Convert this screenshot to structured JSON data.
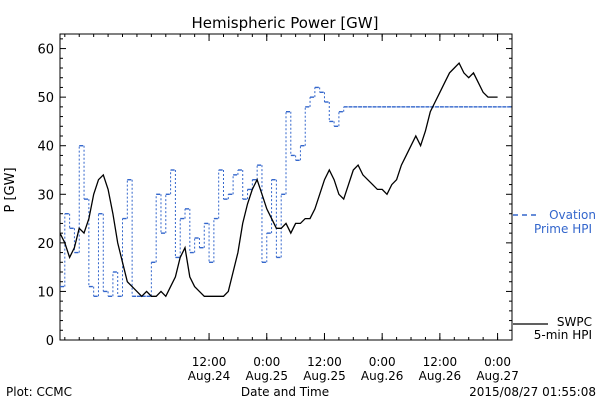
{
  "chart_data": {
    "type": "line",
    "title": "Hemispheric Power [GW]",
    "xlabel": "Date and Time",
    "ylabel": "P [GW]",
    "ylim": [
      0,
      63
    ],
    "xlim": [
      "2015-08-23 05:00",
      "2015-08-27 03:00"
    ],
    "y_ticks": [
      "0",
      "10",
      "20",
      "30",
      "40",
      "50",
      "60"
    ],
    "x_ticks": [
      {
        "time": "2015-08-24 12:00",
        "label1": "12:00",
        "label2": "Aug.24"
      },
      {
        "time": "2015-08-25 00:00",
        "label1": "0:00",
        "label2": "Aug.25"
      },
      {
        "time": "2015-08-25 12:00",
        "label1": "12:00",
        "label2": "Aug.25"
      },
      {
        "time": "2015-08-26 00:00",
        "label1": "0:00",
        "label2": "Aug.26"
      },
      {
        "time": "2015-08-26 12:00",
        "label1": "12:00",
        "label2": "Aug.26"
      },
      {
        "time": "2015-08-27 00:00",
        "label1": "0:00",
        "label2": "Aug.27"
      }
    ],
    "grid": false,
    "legend_placement": "right",
    "series": [
      {
        "name": "SWPC 5-min HPI",
        "legend_line1": "SWPC",
        "legend_line2": "5-min HPI",
        "color": "#000000",
        "style": "solid",
        "x": [
          "2015-08-23 05:00",
          "2015-08-23 06:00",
          "2015-08-23 07:00",
          "2015-08-23 08:00",
          "2015-08-23 09:00",
          "2015-08-23 10:00",
          "2015-08-23 11:00",
          "2015-08-23 12:00",
          "2015-08-23 13:00",
          "2015-08-23 14:00",
          "2015-08-23 15:00",
          "2015-08-23 16:00",
          "2015-08-23 17:00",
          "2015-08-23 18:00",
          "2015-08-23 19:00",
          "2015-08-23 20:00",
          "2015-08-23 21:00",
          "2015-08-23 22:00",
          "2015-08-23 23:00",
          "2015-08-24 00:00",
          "2015-08-24 01:00",
          "2015-08-24 02:00",
          "2015-08-24 03:00",
          "2015-08-24 04:00",
          "2015-08-24 05:00",
          "2015-08-24 06:00",
          "2015-08-24 07:00",
          "2015-08-24 08:00",
          "2015-08-24 09:00",
          "2015-08-24 10:00",
          "2015-08-24 11:00",
          "2015-08-24 12:00",
          "2015-08-24 13:00",
          "2015-08-24 14:00",
          "2015-08-24 15:00",
          "2015-08-24 16:00",
          "2015-08-24 17:00",
          "2015-08-24 18:00",
          "2015-08-24 19:00",
          "2015-08-24 20:00",
          "2015-08-24 21:00",
          "2015-08-24 22:00",
          "2015-08-24 23:00",
          "2015-08-25 00:00",
          "2015-08-25 01:00",
          "2015-08-25 02:00",
          "2015-08-25 03:00",
          "2015-08-25 04:00",
          "2015-08-25 05:00",
          "2015-08-25 06:00",
          "2015-08-25 07:00",
          "2015-08-25 08:00",
          "2015-08-25 09:00",
          "2015-08-25 10:00",
          "2015-08-25 11:00",
          "2015-08-25 12:00",
          "2015-08-25 13:00",
          "2015-08-25 14:00",
          "2015-08-25 15:00",
          "2015-08-25 16:00",
          "2015-08-25 17:00",
          "2015-08-25 18:00",
          "2015-08-25 19:00",
          "2015-08-25 20:00",
          "2015-08-25 21:00",
          "2015-08-25 22:00",
          "2015-08-25 23:00",
          "2015-08-26 00:00",
          "2015-08-26 01:00",
          "2015-08-26 02:00",
          "2015-08-26 03:00",
          "2015-08-26 04:00",
          "2015-08-26 05:00",
          "2015-08-26 06:00",
          "2015-08-26 07:00",
          "2015-08-26 08:00",
          "2015-08-26 09:00",
          "2015-08-26 10:00",
          "2015-08-26 11:00",
          "2015-08-26 12:00",
          "2015-08-26 13:00",
          "2015-08-26 14:00",
          "2015-08-26 15:00",
          "2015-08-26 16:00",
          "2015-08-26 17:00",
          "2015-08-26 18:00",
          "2015-08-26 19:00",
          "2015-08-26 20:00",
          "2015-08-26 21:00",
          "2015-08-26 22:00",
          "2015-08-26 23:00",
          "2015-08-27 00:00"
        ],
        "values": [
          22,
          20,
          17,
          19,
          23,
          22,
          25,
          30,
          33,
          34,
          31,
          26,
          20,
          16,
          12,
          11,
          10,
          9,
          10,
          9,
          9,
          10,
          9,
          11,
          13,
          17,
          19,
          13,
          11,
          10,
          9,
          9,
          9,
          9,
          9,
          10,
          14,
          18,
          24,
          28,
          31,
          33,
          30,
          27,
          25,
          23,
          23,
          24,
          22,
          24,
          24,
          25,
          25,
          27,
          30,
          33,
          35,
          33,
          30,
          29,
          32,
          35,
          36,
          34,
          33,
          32,
          31,
          31,
          30,
          32,
          33,
          36,
          38,
          40,
          42,
          40,
          43,
          47,
          49,
          51,
          53,
          55,
          56,
          57,
          55,
          54,
          55,
          53,
          51,
          50,
          50,
          50
        ]
      },
      {
        "name": "Ovation Prime HPI",
        "legend_line1": "Ovation",
        "legend_line2": "Prime HPI",
        "color": "#3366cc",
        "style": "dashed-steps",
        "x": [
          "2015-08-23 05:00",
          "2015-08-23 06:00",
          "2015-08-23 07:00",
          "2015-08-23 08:00",
          "2015-08-23 09:00",
          "2015-08-23 10:00",
          "2015-08-23 11:00",
          "2015-08-23 12:00",
          "2015-08-23 13:00",
          "2015-08-23 14:00",
          "2015-08-23 15:00",
          "2015-08-23 16:00",
          "2015-08-23 17:00",
          "2015-08-23 18:00",
          "2015-08-23 19:00",
          "2015-08-23 20:00",
          "2015-08-23 21:00",
          "2015-08-23 22:00",
          "2015-08-23 23:00",
          "2015-08-24 00:00",
          "2015-08-24 01:00",
          "2015-08-24 02:00",
          "2015-08-24 03:00",
          "2015-08-24 04:00",
          "2015-08-24 05:00",
          "2015-08-24 06:00",
          "2015-08-24 07:00",
          "2015-08-24 08:00",
          "2015-08-24 09:00",
          "2015-08-24 10:00",
          "2015-08-24 11:00",
          "2015-08-24 12:00",
          "2015-08-24 13:00",
          "2015-08-24 14:00",
          "2015-08-24 15:00",
          "2015-08-24 16:00",
          "2015-08-24 17:00",
          "2015-08-24 18:00",
          "2015-08-24 19:00",
          "2015-08-24 20:00",
          "2015-08-24 21:00",
          "2015-08-24 22:00",
          "2015-08-24 23:00",
          "2015-08-25 00:00",
          "2015-08-25 01:00",
          "2015-08-25 02:00",
          "2015-08-25 03:00",
          "2015-08-25 04:00",
          "2015-08-25 05:00",
          "2015-08-25 06:00",
          "2015-08-25 07:00",
          "2015-08-25 08:00",
          "2015-08-25 09:00",
          "2015-08-25 10:00",
          "2015-08-25 11:00",
          "2015-08-25 12:00",
          "2015-08-25 13:00",
          "2015-08-25 14:00",
          "2015-08-25 15:00",
          "2015-08-25 16:00",
          "2015-08-25 17:00",
          "2015-08-25 18:00",
          "2015-08-25 19:00",
          "2015-08-25 20:00",
          "2015-08-25 21:00",
          "2015-08-25 22:00",
          "2015-08-25 23:00",
          "2015-08-26 00:00",
          "2015-08-26 01:00",
          "2015-08-26 02:00",
          "2015-08-26 03:00",
          "2015-08-26 04:00",
          "2015-08-26 05:00",
          "2015-08-26 06:00",
          "2015-08-26 07:00",
          "2015-08-26 08:00",
          "2015-08-26 09:00",
          "2015-08-26 10:00",
          "2015-08-26 11:00",
          "2015-08-26 12:00",
          "2015-08-26 13:00",
          "2015-08-26 14:00",
          "2015-08-26 15:00",
          "2015-08-26 16:00",
          "2015-08-26 17:00",
          "2015-08-26 18:00",
          "2015-08-26 19:00",
          "2015-08-26 20:00",
          "2015-08-26 21:00",
          "2015-08-26 22:00",
          "2015-08-26 23:00",
          "2015-08-27 00:00",
          "2015-08-27 01:00",
          "2015-08-27 02:00"
        ],
        "values": [
          11,
          26,
          23,
          18,
          40,
          29,
          11,
          9,
          26,
          10,
          9,
          14,
          9,
          25,
          33,
          9,
          9,
          9,
          9,
          16,
          30,
          22,
          30,
          35,
          17,
          25,
          27,
          18,
          21,
          19,
          24,
          16,
          25,
          35,
          29,
          30,
          34,
          35,
          29,
          31,
          33,
          36,
          16,
          22,
          33,
          17,
          30,
          47,
          38,
          37,
          40,
          48,
          50,
          52,
          51,
          49,
          45,
          44,
          47,
          48,
          48,
          48,
          48,
          48,
          48,
          48,
          48,
          48,
          48,
          48,
          48,
          48,
          48,
          48,
          48,
          48,
          48,
          48,
          48,
          48,
          48,
          48,
          48,
          48,
          48,
          48,
          48,
          48,
          48,
          48,
          48,
          48,
          48,
          48
        ]
      }
    ]
  },
  "footer": {
    "left": "Plot: CCMC",
    "right": "2015/08/27 01:55:08"
  },
  "colors": {
    "swpc": "#000000",
    "ovation": "#3366cc"
  }
}
